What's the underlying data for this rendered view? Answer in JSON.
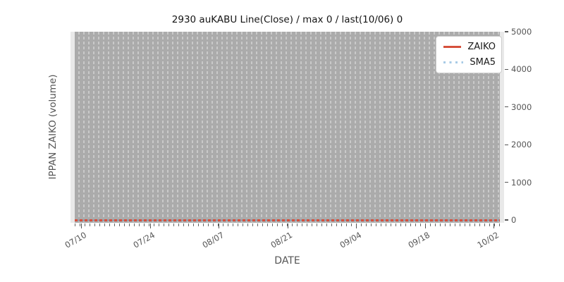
{
  "title": "2930 auKABU Line(Close) / max 0 / last(10/06) 0",
  "axes": {
    "x_label": "DATE",
    "y_label": "IPPAN ZAIKO (volume)",
    "x_ticks": [
      "07/10",
      "07/24",
      "08/07",
      "08/21",
      "09/04",
      "09/18",
      "10/02"
    ],
    "y_ticks": [
      "0",
      "1000",
      "2000",
      "3000",
      "4000",
      "5000"
    ]
  },
  "legend": {
    "items": [
      {
        "label": "ZAIKO",
        "color": "#d6503c",
        "style": "solid"
      },
      {
        "label": "SMA5",
        "color": "#a8cbe6",
        "style": "dotted"
      }
    ]
  },
  "colors": {
    "zaiko_line": "#d6503c",
    "sma5_line": "#a8cbe6",
    "plot_band": "#ababab",
    "grid_dash": "#c9c9c9",
    "axes_background": "#e9e9e9",
    "tick_text": "#555555"
  },
  "chart_data": {
    "type": "line",
    "title": "2930 auKABU Line(Close) / max 0 / last(10/06) 0",
    "xlabel": "DATE",
    "ylabel": "IPPAN ZAIKO (volume)",
    "categories": [
      "07/10",
      "07/24",
      "08/07",
      "08/21",
      "09/04",
      "09/18",
      "10/02"
    ],
    "series": [
      {
        "name": "ZAIKO",
        "style": "solid",
        "color": "#d6503c",
        "values": [
          0,
          0,
          0,
          0,
          0,
          0,
          0
        ]
      },
      {
        "name": "SMA5",
        "style": "dotted",
        "color": "#a8cbe6",
        "values": [
          0,
          0,
          0,
          0,
          0,
          0,
          0
        ]
      }
    ],
    "note": "Daily series from ~07/08 to 10/06; every value is 0 (flat line at zero).",
    "max": 0,
    "last": {
      "date": "10/06",
      "value": 0
    },
    "ylim": [
      0,
      5000
    ],
    "y_tick_values": [
      0,
      1000,
      2000,
      3000,
      4000,
      5000
    ],
    "grid": "vertical daily dashed gridlines on gray band",
    "legend_position": "upper right"
  }
}
